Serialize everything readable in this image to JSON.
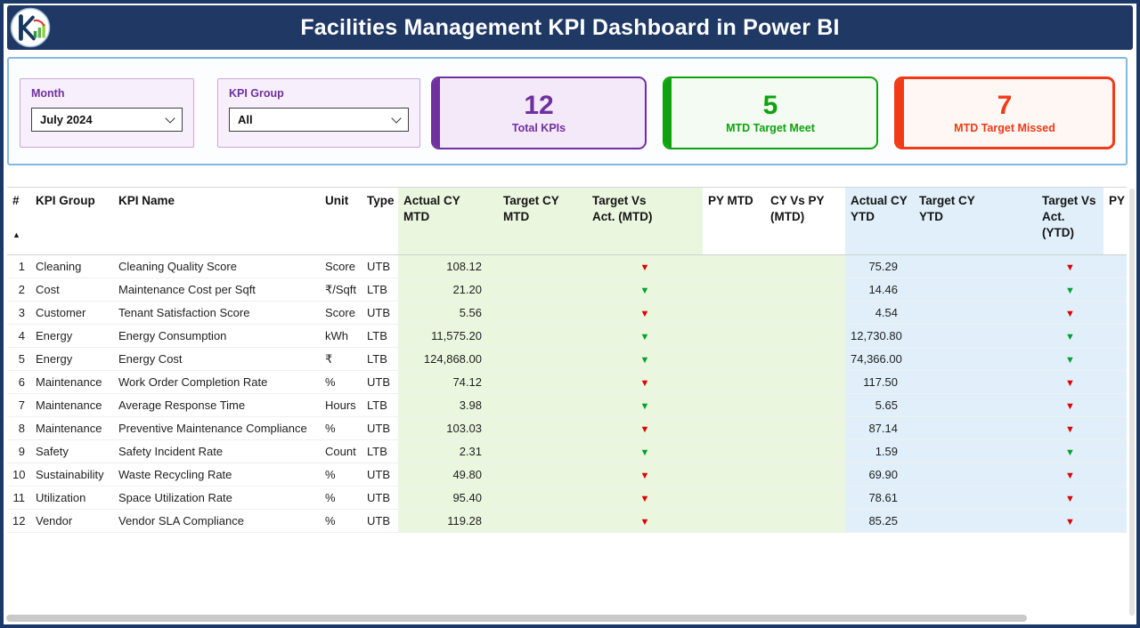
{
  "header": {
    "title": "Facilities Management KPI Dashboard in Power BI"
  },
  "filters": {
    "month": {
      "label": "Month",
      "value": "July 2024"
    },
    "kpi_group": {
      "label": "KPI Group",
      "value": "All"
    }
  },
  "cards": [
    {
      "value": "12",
      "label": "Total KPIs"
    },
    {
      "value": "5",
      "label": "MTD Target Meet"
    },
    {
      "value": "7",
      "label": "MTD Target Missed"
    }
  ],
  "icons": {
    "sort_ascending": "▲",
    "indicator_down": "▼",
    "dropdown_chevron": "chevron-down"
  },
  "colors": {
    "banner": "#1F3864",
    "frame": "#1B3866",
    "accent_purple": "#7030A0",
    "accent_green": "#0EA30E",
    "accent_red": "#F23A17",
    "indicator_red": "#E00000",
    "indicator_green": "#00A32E",
    "band_green": "#EBF6DF",
    "band_blue": "#E0EFF9",
    "panel_border": "#86B9DF",
    "slicer_bg": "#F7EFFB",
    "slicer_border": "#C9A8DB",
    "card_purple_bg": "#F3E9F8",
    "card_green_bg": "#F3FBF3",
    "card_red_bg": "#FFF7F3"
  },
  "table": {
    "columns": [
      {
        "key": "num",
        "label": "#"
      },
      {
        "key": "group",
        "label": "KPI Group"
      },
      {
        "key": "name",
        "label": "KPI Name"
      },
      {
        "key": "unit",
        "label": "Unit"
      },
      {
        "key": "type",
        "label": "Type"
      },
      {
        "key": "actual_mtd",
        "label": "Actual CY MTD"
      },
      {
        "key": "target_mtd",
        "label": "Target CY MTD"
      },
      {
        "key": "tva_mtd",
        "label": "Target Vs Act. (MTD)"
      },
      {
        "key": "py_mtd",
        "label": "PY MTD"
      },
      {
        "key": "cy_vs_py_mtd",
        "label": "CY Vs PY (MTD)"
      },
      {
        "key": "actual_ytd",
        "label": "Actual CY YTD"
      },
      {
        "key": "target_ytd",
        "label": "Target CY YTD"
      },
      {
        "key": "tva_ytd",
        "label": "Target Vs Act. (YTD)"
      },
      {
        "key": "py_ytd",
        "label": "PY"
      }
    ],
    "rows": [
      {
        "num": "1",
        "group": "Cleaning",
        "name": "Cleaning Quality Score",
        "unit": "Score",
        "type": "UTB",
        "actual_mtd": "108.12",
        "target_mtd": "",
        "tva_mtd": "red",
        "py_mtd": "",
        "cy_vs_py_mtd": "",
        "actual_ytd": "75.29",
        "target_ytd": "",
        "tva_ytd": "red",
        "py_ytd": ""
      },
      {
        "num": "2",
        "group": "Cost",
        "name": "Maintenance Cost per Sqft",
        "unit": "₹/Sqft",
        "type": "LTB",
        "actual_mtd": "21.20",
        "target_mtd": "",
        "tva_mtd": "green",
        "py_mtd": "",
        "cy_vs_py_mtd": "",
        "actual_ytd": "14.46",
        "target_ytd": "",
        "tva_ytd": "green",
        "py_ytd": ""
      },
      {
        "num": "3",
        "group": "Customer",
        "name": "Tenant Satisfaction Score",
        "unit": "Score",
        "type": "UTB",
        "actual_mtd": "5.56",
        "target_mtd": "",
        "tva_mtd": "red",
        "py_mtd": "",
        "cy_vs_py_mtd": "",
        "actual_ytd": "4.54",
        "target_ytd": "",
        "tva_ytd": "red",
        "py_ytd": ""
      },
      {
        "num": "4",
        "group": "Energy",
        "name": "Energy Consumption",
        "unit": "kWh",
        "type": "LTB",
        "actual_mtd": "11,575.20",
        "target_mtd": "",
        "tva_mtd": "green",
        "py_mtd": "",
        "cy_vs_py_mtd": "",
        "actual_ytd": "12,730.80",
        "target_ytd": "",
        "tva_ytd": "green",
        "py_ytd": ""
      },
      {
        "num": "5",
        "group": "Energy",
        "name": "Energy Cost",
        "unit": "₹",
        "type": "LTB",
        "actual_mtd": "124,868.00",
        "target_mtd": "",
        "tva_mtd": "green",
        "py_mtd": "",
        "cy_vs_py_mtd": "",
        "actual_ytd": "74,366.00",
        "target_ytd": "",
        "tva_ytd": "green",
        "py_ytd": ""
      },
      {
        "num": "6",
        "group": "Maintenance",
        "name": "Work Order Completion Rate",
        "unit": "%",
        "type": "UTB",
        "actual_mtd": "74.12",
        "target_mtd": "",
        "tva_mtd": "red",
        "py_mtd": "",
        "cy_vs_py_mtd": "",
        "actual_ytd": "117.50",
        "target_ytd": "",
        "tva_ytd": "red",
        "py_ytd": ""
      },
      {
        "num": "7",
        "group": "Maintenance",
        "name": "Average Response Time",
        "unit": "Hours",
        "type": "LTB",
        "actual_mtd": "3.98",
        "target_mtd": "",
        "tva_mtd": "green",
        "py_mtd": "",
        "cy_vs_py_mtd": "",
        "actual_ytd": "5.65",
        "target_ytd": "",
        "tva_ytd": "red",
        "py_ytd": ""
      },
      {
        "num": "8",
        "group": "Maintenance",
        "name": "Preventive Maintenance Compliance",
        "unit": "%",
        "type": "UTB",
        "actual_mtd": "103.03",
        "target_mtd": "",
        "tva_mtd": "red",
        "py_mtd": "",
        "cy_vs_py_mtd": "",
        "actual_ytd": "87.14",
        "target_ytd": "",
        "tva_ytd": "red",
        "py_ytd": ""
      },
      {
        "num": "9",
        "group": "Safety",
        "name": "Safety Incident Rate",
        "unit": "Count",
        "type": "LTB",
        "actual_mtd": "2.31",
        "target_mtd": "",
        "tva_mtd": "green",
        "py_mtd": "",
        "cy_vs_py_mtd": "",
        "actual_ytd": "1.59",
        "target_ytd": "",
        "tva_ytd": "green",
        "py_ytd": ""
      },
      {
        "num": "10",
        "group": "Sustainability",
        "name": "Waste Recycling Rate",
        "unit": "%",
        "type": "UTB",
        "actual_mtd": "49.80",
        "target_mtd": "",
        "tva_mtd": "red",
        "py_mtd": "",
        "cy_vs_py_mtd": "",
        "actual_ytd": "69.90",
        "target_ytd": "",
        "tva_ytd": "red",
        "py_ytd": ""
      },
      {
        "num": "11",
        "group": "Utilization",
        "name": "Space Utilization Rate",
        "unit": "%",
        "type": "UTB",
        "actual_mtd": "95.40",
        "target_mtd": "",
        "tva_mtd": "red",
        "py_mtd": "",
        "cy_vs_py_mtd": "",
        "actual_ytd": "78.61",
        "target_ytd": "",
        "tva_ytd": "red",
        "py_ytd": ""
      },
      {
        "num": "12",
        "group": "Vendor",
        "name": "Vendor SLA Compliance",
        "unit": "%",
        "type": "UTB",
        "actual_mtd": "119.28",
        "target_mtd": "",
        "tva_mtd": "red",
        "py_mtd": "",
        "cy_vs_py_mtd": "",
        "actual_ytd": "85.25",
        "target_ytd": "",
        "tva_ytd": "red",
        "py_ytd": ""
      }
    ]
  }
}
